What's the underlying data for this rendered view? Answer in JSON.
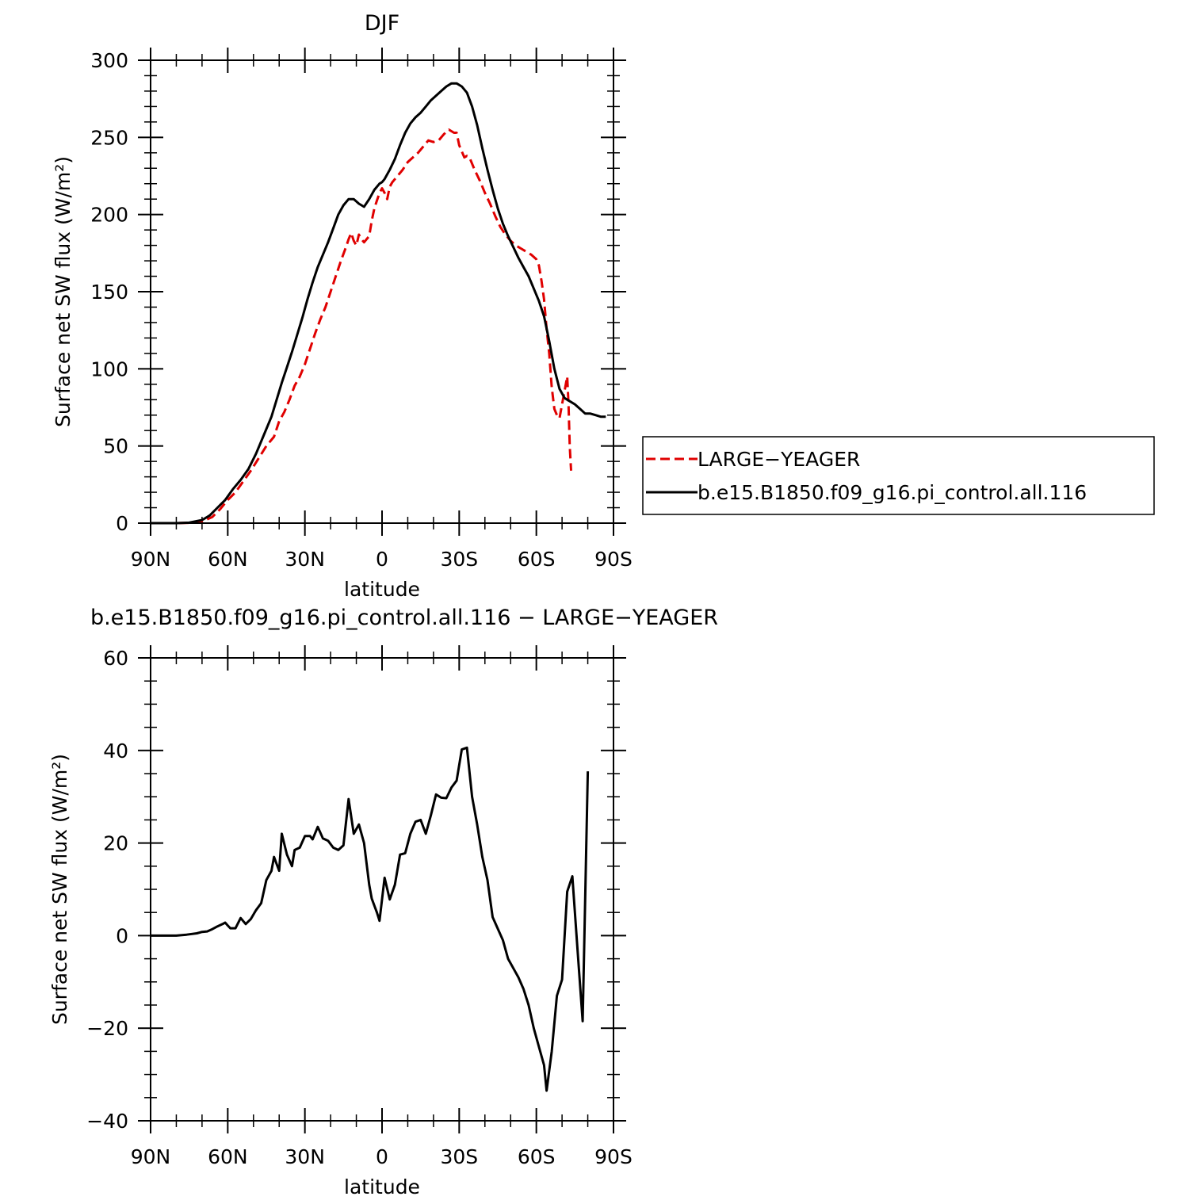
{
  "charts": [
    {
      "type": "line",
      "title": "DJF",
      "xlabel": "latitude",
      "ylabel": "Surface net SW flux (W/m²)",
      "xlim": [
        -90,
        90
      ],
      "ylim": [
        0,
        300
      ],
      "x_ticks": [
        {
          "value": -90,
          "label": "90N"
        },
        {
          "value": -60,
          "label": "60N"
        },
        {
          "value": -30,
          "label": "30N"
        },
        {
          "value": 0,
          "label": "0"
        },
        {
          "value": 30,
          "label": "30S"
        },
        {
          "value": 60,
          "label": "60S"
        },
        {
          "value": 90,
          "label": "90S"
        }
      ],
      "y_ticks": [
        0,
        50,
        100,
        150,
        200,
        250,
        300
      ],
      "legend": {
        "position": "right",
        "entries": [
          "LARGE−YEAGER",
          "b.e15.B1850.f09_g16.pi_control.all.116"
        ]
      },
      "series": [
        {
          "name": "LARGE−YEAGER",
          "color": "#e00000",
          "dash": "dashed",
          "points": [
            [
              -90,
              0
            ],
            [
              -80,
              0
            ],
            [
              -75,
              0.2
            ],
            [
              -70,
              1
            ],
            [
              -66,
              4
            ],
            [
              -63,
              9
            ],
            [
              -60,
              15
            ],
            [
              -57,
              20
            ],
            [
              -54,
              27
            ],
            [
              -51,
              34
            ],
            [
              -48,
              42
            ],
            [
              -45,
              50
            ],
            [
              -42,
              56
            ],
            [
              -40,
              66
            ],
            [
              -38,
              72
            ],
            [
              -36,
              80
            ],
            [
              -34,
              89
            ],
            [
              -32,
              95
            ],
            [
              -30,
              103
            ],
            [
              -28,
              113
            ],
            [
              -26,
              123
            ],
            [
              -24,
              132
            ],
            [
              -22,
              140
            ],
            [
              -20,
              150
            ],
            [
              -18,
              160
            ],
            [
              -16,
              170
            ],
            [
              -14,
              179
            ],
            [
              -13,
              184
            ],
            [
              -12,
              188
            ],
            [
              -11,
              183
            ],
            [
              -10,
              180
            ],
            [
              -9,
              187
            ],
            [
              -8,
              184
            ],
            [
              -7,
              182
            ],
            [
              -6,
              184
            ],
            [
              -5,
              186
            ],
            [
              -4,
              196
            ],
            [
              -3,
              204
            ],
            [
              -2,
              209
            ],
            [
              -1,
              214
            ],
            [
              0,
              217
            ],
            [
              1,
              214
            ],
            [
              2,
              210
            ],
            [
              3,
              218
            ],
            [
              4,
              221
            ],
            [
              6,
              225
            ],
            [
              8,
              229
            ],
            [
              10,
              234
            ],
            [
              12,
              237
            ],
            [
              14,
              240
            ],
            [
              16,
              244
            ],
            [
              18,
              248
            ],
            [
              20,
              247
            ],
            [
              22,
              248
            ],
            [
              24,
              252
            ],
            [
              26,
              255
            ],
            [
              28,
              253
            ],
            [
              29,
              253
            ],
            [
              30,
              245
            ],
            [
              32,
              237
            ],
            [
              33,
              238
            ],
            [
              34,
              237
            ],
            [
              36,
              229
            ],
            [
              38,
              222
            ],
            [
              40,
              214
            ],
            [
              42,
              207
            ],
            [
              44,
              199
            ],
            [
              46,
              192
            ],
            [
              48,
              187
            ],
            [
              50,
              183
            ],
            [
              52,
              180
            ],
            [
              54,
              178
            ],
            [
              56,
              176
            ],
            [
              58,
              174
            ],
            [
              60,
              171
            ],
            [
              61,
              167
            ],
            [
              62,
              157
            ],
            [
              63,
              145
            ],
            [
              64,
              126
            ],
            [
              65,
              110
            ],
            [
              66,
              88
            ],
            [
              67,
              74
            ],
            [
              68,
              70
            ],
            [
              69,
              68
            ],
            [
              70,
              77
            ],
            [
              71,
              86
            ],
            [
              72,
              95
            ],
            [
              72.5,
              78
            ],
            [
              73,
              50
            ],
            [
              73.5,
              34
            ]
          ]
        },
        {
          "name": "b.e15.B1850.f09_g16.pi_control.all.116",
          "color": "#000000",
          "dash": "solid",
          "points": [
            [
              -90,
              0
            ],
            [
              -80,
              0
            ],
            [
              -75,
              0.3
            ],
            [
              -70,
              2
            ],
            [
              -67,
              5
            ],
            [
              -64,
              10
            ],
            [
              -61,
              15
            ],
            [
              -58,
              22
            ],
            [
              -55,
              28
            ],
            [
              -52,
              35
            ],
            [
              -49,
              45
            ],
            [
              -46,
              57
            ],
            [
              -43,
              69
            ],
            [
              -41,
              80
            ],
            [
              -39,
              91
            ],
            [
              -37,
              101
            ],
            [
              -35,
              111
            ],
            [
              -33,
              122
            ],
            [
              -31,
              133
            ],
            [
              -29,
              145
            ],
            [
              -27,
              156
            ],
            [
              -25,
              166
            ],
            [
              -23,
              174
            ],
            [
              -21,
              182
            ],
            [
              -19,
              191
            ],
            [
              -17,
              200
            ],
            [
              -15,
              206
            ],
            [
              -13,
              210
            ],
            [
              -11,
              210
            ],
            [
              -9,
              207
            ],
            [
              -7,
              205
            ],
            [
              -5,
              210
            ],
            [
              -3,
              216
            ],
            [
              -1,
              220
            ],
            [
              0,
              221
            ],
            [
              1,
              223
            ],
            [
              3,
              229
            ],
            [
              5,
              236
            ],
            [
              7,
              245
            ],
            [
              9,
              253
            ],
            [
              11,
              259
            ],
            [
              13,
              263
            ],
            [
              15,
              266
            ],
            [
              17,
              270
            ],
            [
              19,
              274
            ],
            [
              21,
              277
            ],
            [
              23,
              280
            ],
            [
              25,
              283
            ],
            [
              27,
              285
            ],
            [
              29,
              285
            ],
            [
              31,
              283
            ],
            [
              33,
              279
            ],
            [
              35,
              270
            ],
            [
              37,
              258
            ],
            [
              39,
              243
            ],
            [
              41,
              229
            ],
            [
              43,
              216
            ],
            [
              45,
              204
            ],
            [
              47,
              194
            ],
            [
              49,
              186
            ],
            [
              51,
              179
            ],
            [
              53,
              172
            ],
            [
              55,
              166
            ],
            [
              57,
              160
            ],
            [
              59,
              152
            ],
            [
              61,
              144
            ],
            [
              63,
              134
            ],
            [
              65,
              118
            ],
            [
              67,
              100
            ],
            [
              69,
              87
            ],
            [
              71,
              81
            ],
            [
              73,
              79
            ],
            [
              75,
              77
            ],
            [
              77,
              74
            ],
            [
              79,
              71
            ],
            [
              81,
              71
            ],
            [
              83,
              70
            ],
            [
              85,
              69
            ],
            [
              87,
              69
            ]
          ]
        }
      ]
    },
    {
      "type": "line",
      "title": "b.e15.B1850.f09_g16.pi_control.all.116 − LARGE−YEAGER",
      "xlabel": "latitude",
      "ylabel": "Surface net SW flux (W/m²)",
      "xlim": [
        -90,
        90
      ],
      "ylim": [
        -40,
        60
      ],
      "x_ticks": [
        {
          "value": -90,
          "label": "90N"
        },
        {
          "value": -60,
          "label": "60N"
        },
        {
          "value": -30,
          "label": "30N"
        },
        {
          "value": 0,
          "label": "0"
        },
        {
          "value": 30,
          "label": "30S"
        },
        {
          "value": 60,
          "label": "60S"
        },
        {
          "value": 90,
          "label": "90S"
        }
      ],
      "y_ticks": [
        -40,
        -20,
        0,
        20,
        40,
        60
      ],
      "series": [
        {
          "name": "",
          "color": "#000000",
          "dash": "solid",
          "points": [
            [
              -90,
              0
            ],
            [
              -80,
              0
            ],
            [
              -76,
              0.2
            ],
            [
              -72,
              0.5
            ],
            [
              -70,
              0.8
            ],
            [
              -68,
              0.9
            ],
            [
              -66,
              1.4
            ],
            [
              -64,
              2
            ],
            [
              -62,
              2.5
            ],
            [
              -61,
              2.8
            ],
            [
              -60,
              2.2
            ],
            [
              -59,
              1.6
            ],
            [
              -57,
              1.6
            ],
            [
              -55,
              3.8
            ],
            [
              -53,
              2.5
            ],
            [
              -51,
              3.6
            ],
            [
              -49,
              5.5
            ],
            [
              -47,
              7
            ],
            [
              -45,
              12
            ],
            [
              -43,
              14
            ],
            [
              -42,
              17
            ],
            [
              -40,
              14
            ],
            [
              -39,
              22
            ],
            [
              -37,
              17.5
            ],
            [
              -35,
              15
            ],
            [
              -34,
              18.5
            ],
            [
              -32,
              19
            ],
            [
              -30,
              21.5
            ],
            [
              -28,
              21.5
            ],
            [
              -27,
              20.8
            ],
            [
              -25,
              23.5
            ],
            [
              -23,
              21
            ],
            [
              -21,
              20.5
            ],
            [
              -19,
              19
            ],
            [
              -17,
              18.5
            ],
            [
              -15,
              19.5
            ],
            [
              -13,
              29.5
            ],
            [
              -11,
              22
            ],
            [
              -9,
              24
            ],
            [
              -7,
              20
            ],
            [
              -5,
              11
            ],
            [
              -4,
              8
            ],
            [
              -2,
              5
            ],
            [
              -1,
              3.2
            ],
            [
              1,
              12.5
            ],
            [
              3,
              7.8
            ],
            [
              5,
              11
            ],
            [
              7,
              17.5
            ],
            [
              9,
              17.8
            ],
            [
              11,
              22
            ],
            [
              13,
              24.6
            ],
            [
              15,
              25
            ],
            [
              17,
              22
            ],
            [
              19,
              26
            ],
            [
              21,
              30.5
            ],
            [
              23,
              29.8
            ],
            [
              25,
              29.7
            ],
            [
              27,
              32
            ],
            [
              29,
              33.5
            ],
            [
              31,
              40.2
            ],
            [
              33,
              40.6
            ],
            [
              35,
              30
            ],
            [
              37,
              24
            ],
            [
              39,
              17
            ],
            [
              41,
              12
            ],
            [
              43,
              4
            ],
            [
              45,
              1.5
            ],
            [
              47,
              -1
            ],
            [
              49,
              -5
            ],
            [
              51,
              -7
            ],
            [
              53,
              -9
            ],
            [
              55,
              -11.5
            ],
            [
              57,
              -15
            ],
            [
              59,
              -20
            ],
            [
              61,
              -24
            ],
            [
              63,
              -28
            ],
            [
              64,
              -33.5
            ],
            [
              66,
              -25
            ],
            [
              68,
              -13
            ],
            [
              70,
              -9.5
            ],
            [
              72,
              9.5
            ],
            [
              74,
              12.8
            ],
            [
              76,
              -3
            ],
            [
              78,
              -18.5
            ],
            [
              80,
              35.5
            ]
          ]
        }
      ]
    }
  ]
}
